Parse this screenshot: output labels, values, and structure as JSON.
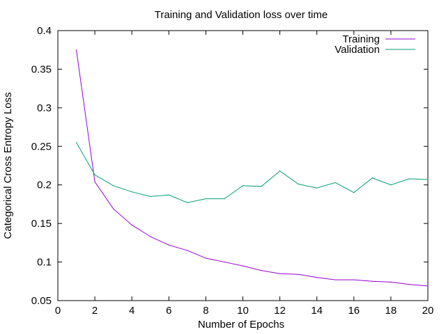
{
  "chart_data": {
    "type": "line",
    "title": "Training and Validation loss over time",
    "xlabel": "Number of Epochs",
    "ylabel": "Categorical Cross Entropy Loss",
    "xlim": [
      0,
      20
    ],
    "ylim": [
      0.05,
      0.4
    ],
    "xticks": [
      0,
      2,
      4,
      6,
      8,
      10,
      12,
      14,
      16,
      18,
      20
    ],
    "yticks": [
      0.05,
      0.1,
      0.15,
      0.2,
      0.25,
      0.3,
      0.35,
      0.4
    ],
    "ytick_labels": [
      "0.05",
      "0.1",
      "0.15",
      "0.2",
      "0.25",
      "0.3",
      "0.35",
      "0.4"
    ],
    "grid": false,
    "legend_position": "top-right",
    "x": [
      1,
      2,
      3,
      4,
      5,
      6,
      7,
      8,
      9,
      10,
      11,
      12,
      13,
      14,
      15,
      16,
      17,
      18,
      19,
      20
    ],
    "series": [
      {
        "name": "Training",
        "color": "#9400d3",
        "values": [
          0.375,
          0.204,
          0.169,
          0.148,
          0.133,
          0.122,
          0.115,
          0.105,
          0.1,
          0.095,
          0.089,
          0.085,
          0.084,
          0.08,
          0.077,
          0.077,
          0.075,
          0.074,
          0.071,
          0.069
        ]
      },
      {
        "name": "Validation",
        "color": "#009e73",
        "values": [
          0.255,
          0.213,
          0.199,
          0.191,
          0.185,
          0.187,
          0.177,
          0.182,
          0.182,
          0.199,
          0.198,
          0.218,
          0.201,
          0.196,
          0.203,
          0.19,
          0.209,
          0.2,
          0.208,
          0.207
        ]
      }
    ]
  }
}
